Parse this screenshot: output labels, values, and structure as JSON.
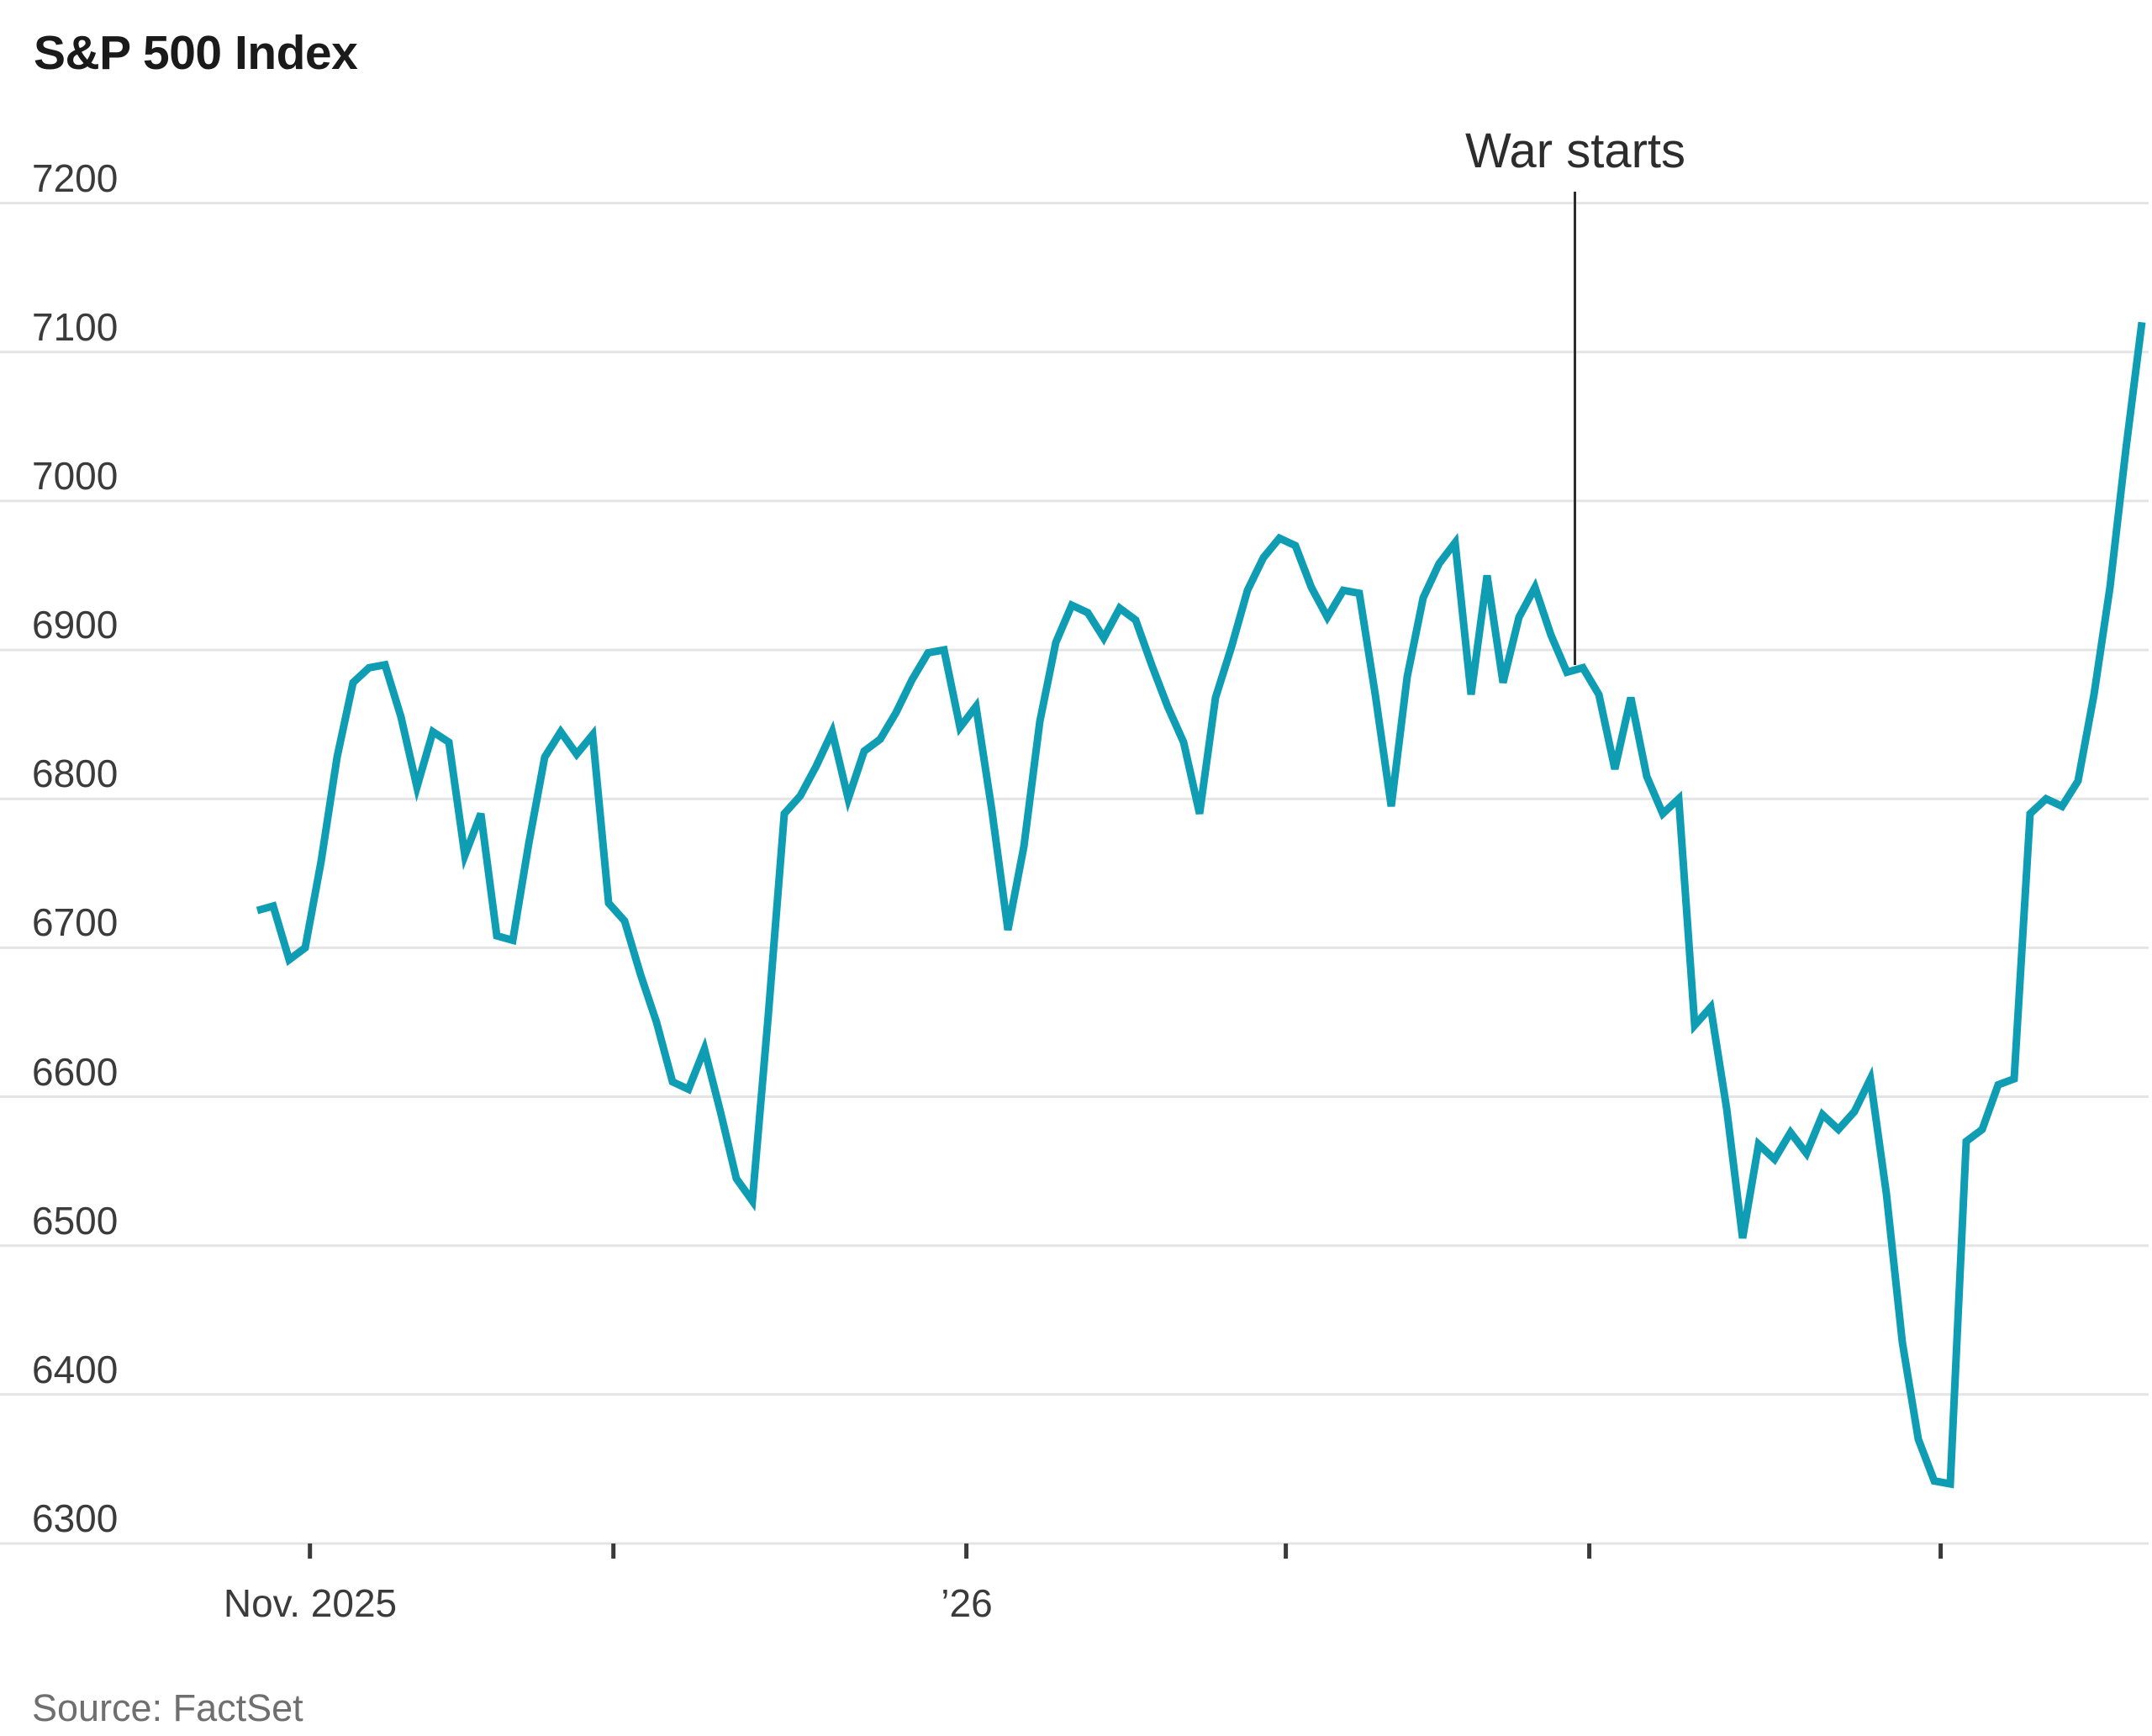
{
  "page": {
    "title": "S&P 500 Index",
    "source": "Source: FactSet"
  },
  "chart_data": {
    "type": "line",
    "title": "S&P 500 Index",
    "ylabel": "",
    "xlabel": "",
    "ylim": [
      6300,
      7200
    ],
    "grid": true,
    "legend": "none",
    "line_color": "#0e9db3",
    "y_ticks": [
      7200,
      7100,
      7000,
      6900,
      6800,
      6700,
      6600,
      6500,
      6400,
      6300
    ],
    "x_unit": "trading-day index (daily close)",
    "x_ticks": [
      {
        "label": "Nov. 2025",
        "day": 3.3
      },
      {
        "label": "",
        "day": 22.3
      },
      {
        "label": "’26",
        "day": 44.4
      },
      {
        "label": "",
        "day": 64.4
      },
      {
        "label": "",
        "day": 83.4
      },
      {
        "label": "",
        "day": 105.4
      }
    ],
    "annotation": {
      "label": "War starts",
      "day": 82.5
    },
    "series": [
      {
        "name": "S&P 500 Index",
        "values": [
          6725,
          6728,
          6692,
          6700,
          6758,
          6828,
          6878,
          6888,
          6890,
          6855,
          6808,
          6845,
          6838,
          6762,
          6790,
          6708,
          6705,
          6770,
          6828,
          6845,
          6830,
          6843,
          6730,
          6718,
          6682,
          6650,
          6610,
          6605,
          6632,
          6590,
          6545,
          6530,
          6655,
          6790,
          6802,
          6822,
          6845,
          6800,
          6832,
          6840,
          6858,
          6880,
          6898,
          6900,
          6848,
          6862,
          6792,
          6712,
          6768,
          6852,
          6905,
          6930,
          6925,
          6908,
          6928,
          6920,
          6890,
          6862,
          6838,
          6790,
          6868,
          6902,
          6940,
          6962,
          6975,
          6970,
          6942,
          6922,
          6940,
          6938,
          6870,
          6795,
          6882,
          6935,
          6958,
          6972,
          6870,
          6950,
          6878,
          6922,
          6942,
          6910,
          6885,
          6888,
          6870,
          6820,
          6868,
          6815,
          6790,
          6800,
          6648,
          6660,
          6592,
          6505,
          6568,
          6558,
          6576,
          6562,
          6588,
          6578,
          6590,
          6612,
          6535,
          6435,
          6370,
          6342,
          6340,
          6570,
          6578,
          6608,
          6612,
          6790,
          6800,
          6795,
          6812,
          6870,
          6942,
          7035,
          7120
        ]
      }
    ]
  }
}
